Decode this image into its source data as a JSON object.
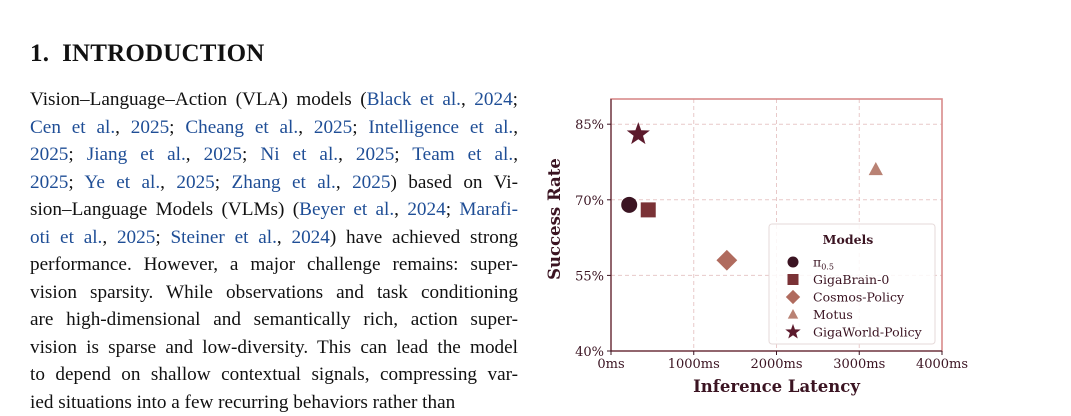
{
  "section": {
    "number": "1.",
    "title": "INTRODUCTION"
  },
  "paragraph": {
    "lines": [
      [
        {
          "t": "Vision–Language–Action (VLA) models ("
        },
        {
          "t": "Black et al.",
          "c": true
        },
        {
          "t": ", "
        },
        {
          "t": "2024",
          "c": true
        },
        {
          "t": ";"
        }
      ],
      [
        {
          "t": "Cen et al.",
          "c": true
        },
        {
          "t": ", "
        },
        {
          "t": "2025",
          "c": true
        },
        {
          "t": "; "
        },
        {
          "t": "Cheang et al.",
          "c": true
        },
        {
          "t": ", "
        },
        {
          "t": "2025",
          "c": true
        },
        {
          "t": "; "
        },
        {
          "t": "Intelligence et al.",
          "c": true
        },
        {
          "t": ","
        }
      ],
      [
        {
          "t": "2025",
          "c": true
        },
        {
          "t": "; "
        },
        {
          "t": "Jiang et al.",
          "c": true
        },
        {
          "t": ", "
        },
        {
          "t": "2025",
          "c": true
        },
        {
          "t": "; "
        },
        {
          "t": "Ni et al.",
          "c": true
        },
        {
          "t": ", "
        },
        {
          "t": "2025",
          "c": true
        },
        {
          "t": "; "
        },
        {
          "t": "Team et al.",
          "c": true
        },
        {
          "t": ","
        }
      ],
      [
        {
          "t": "2025",
          "c": true
        },
        {
          "t": "; "
        },
        {
          "t": "Ye et al.",
          "c": true
        },
        {
          "t": ", "
        },
        {
          "t": "2025",
          "c": true
        },
        {
          "t": "; "
        },
        {
          "t": "Zhang et al.",
          "c": true
        },
        {
          "t": ", "
        },
        {
          "t": "2025",
          "c": true
        },
        {
          "t": ") based on Vi-"
        }
      ],
      [
        {
          "t": "sion–Language Models (VLMs) ("
        },
        {
          "t": "Beyer et al.",
          "c": true
        },
        {
          "t": ", "
        },
        {
          "t": "2024",
          "c": true
        },
        {
          "t": "; "
        },
        {
          "t": "Marafi-",
          "c": true
        }
      ],
      [
        {
          "t": "oti et al.",
          "c": true
        },
        {
          "t": ", "
        },
        {
          "t": "2025",
          "c": true
        },
        {
          "t": "; "
        },
        {
          "t": "Steiner et al.",
          "c": true
        },
        {
          "t": ", "
        },
        {
          "t": "2024",
          "c": true
        },
        {
          "t": ") have achieved strong"
        }
      ],
      [
        {
          "t": "performance. However, a major challenge remains: super-"
        }
      ],
      [
        {
          "t": "vision sparsity. While observations and task conditioning"
        }
      ],
      [
        {
          "t": "are high-dimensional and semantically rich, action super-"
        }
      ],
      [
        {
          "t": "vision is sparse and low-diversity. This can lead the model"
        }
      ],
      [
        {
          "t": "to depend on shallow contextual signals, compressing var-"
        }
      ],
      [
        {
          "t": "ied situations into a few recurring behaviors rather than"
        }
      ]
    ]
  },
  "chart_data": {
    "type": "scatter",
    "xlabel": "Inference Latency",
    "ylabel": "Success Rate",
    "xlim": [
      0,
      4000
    ],
    "ylim": [
      40,
      90
    ],
    "xticks": [
      0,
      1000,
      2000,
      3000,
      4000
    ],
    "xtick_labels": [
      "0ms",
      "1000ms",
      "2000ms",
      "3000ms",
      "4000ms"
    ],
    "yticks": [
      40,
      55,
      70,
      85
    ],
    "ytick_labels": [
      "40%",
      "55%",
      "70%",
      "85%"
    ],
    "grid": true,
    "legend": {
      "title": "Models",
      "position": "lower-right"
    },
    "series": [
      {
        "name": "π0.5",
        "name_main": "π",
        "name_sub": "0.5",
        "marker": "circle",
        "color": "#3b1422",
        "points": [
          {
            "x": 220,
            "y": 69
          }
        ]
      },
      {
        "name": "GigaBrain-0",
        "marker": "square",
        "color": "#7a3236",
        "points": [
          {
            "x": 450,
            "y": 68
          }
        ]
      },
      {
        "name": "Cosmos-Policy",
        "marker": "diamond",
        "color": "#b06b5e",
        "points": [
          {
            "x": 1400,
            "y": 58
          }
        ]
      },
      {
        "name": "Motus",
        "marker": "triangle",
        "color": "#b98274",
        "points": [
          {
            "x": 3200,
            "y": 76
          }
        ]
      },
      {
        "name": "GigaWorld-Policy",
        "marker": "star",
        "color": "#5c1a2c",
        "points": [
          {
            "x": 330,
            "y": 83
          }
        ]
      }
    ],
    "colors": {
      "frame": "#d98b8b",
      "grid": "#e8c9c9",
      "text": "#3b1422"
    }
  }
}
